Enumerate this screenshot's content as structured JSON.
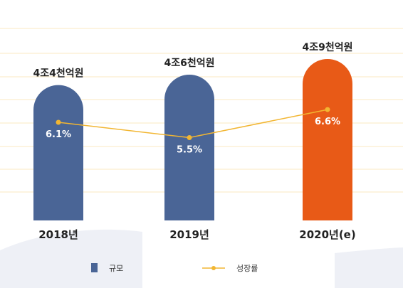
{
  "chart_data": {
    "type": "bar",
    "categories": [
      "2018년",
      "2019년",
      "2020년(e)"
    ],
    "bar_labels": [
      "4조4천억원",
      "4조6천억원",
      "4조9천억원"
    ],
    "series": [
      {
        "name": "규모",
        "type": "bar",
        "values": [
          4.4,
          4.6,
          4.9
        ],
        "colors": [
          "#4a6596",
          "#4a6596",
          "#e85a17"
        ]
      },
      {
        "name": "성장률",
        "type": "line",
        "values": [
          6.1,
          5.5,
          6.6
        ],
        "labels": [
          "6.1%",
          "5.5%",
          "6.6%"
        ],
        "color": "#f2b632"
      }
    ],
    "grid": true,
    "legend": "bottom-center"
  },
  "legend": {
    "bar_label": "규모",
    "line_label": "성장률"
  },
  "colors": {
    "bar": "#4a6596",
    "bar_highlight": "#e85a17",
    "line": "#f2b632",
    "grid": "#fbe8c0",
    "text": "#222222"
  }
}
